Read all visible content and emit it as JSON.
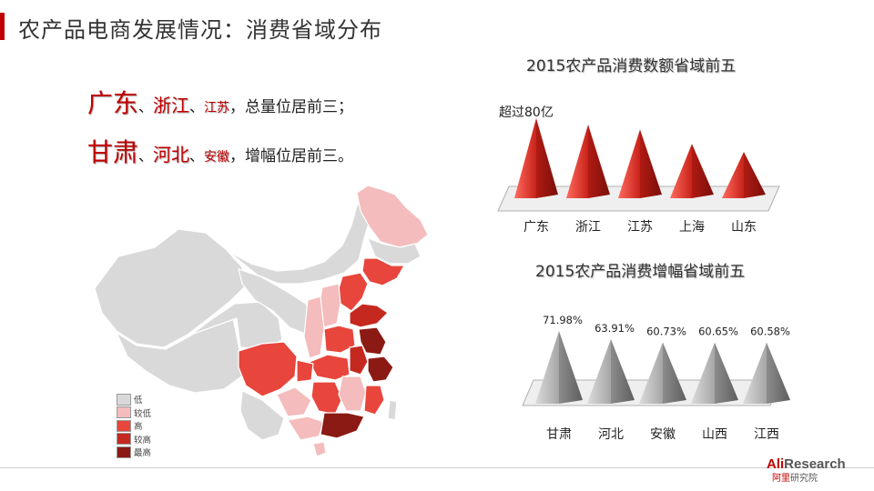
{
  "page": {
    "title": "农产品电商发展情况：消费省域分布"
  },
  "summary": {
    "line1": {
      "p1": "广东",
      "sep1": "、",
      "p2": "浙江",
      "sep2": "、",
      "p3": "江苏",
      "text": "，总量位居前三；"
    },
    "line2": {
      "p1": "甘肃",
      "sep1": "、",
      "p2": "河北",
      "sep2": "、",
      "p3": "安徽",
      "text": "，增幅位居前三。"
    }
  },
  "map_legend": {
    "items": [
      {
        "label": "低",
        "color": "#d9d9d9"
      },
      {
        "label": "较低",
        "color": "#f4bcbc"
      },
      {
        "label": "高",
        "color": "#e8453c"
      },
      {
        "label": "较高",
        "color": "#c4281f"
      },
      {
        "label": "最高",
        "color": "#8b1a14"
      }
    ]
  },
  "chart_data": [
    {
      "type": "bar",
      "title": "2015农产品消费数额省域前五",
      "categories": [
        "广东",
        "浙江",
        "江苏",
        "上海",
        "山东"
      ],
      "values": [
        100,
        92,
        86,
        68,
        58
      ],
      "annotation": "超过80亿",
      "color": "#d42a1f",
      "value_labels": []
    },
    {
      "type": "bar",
      "title": "2015农产品消费增幅省域前五",
      "categories": [
        "甘肃",
        "河北",
        "安徽",
        "山西",
        "江西"
      ],
      "values": [
        71.98,
        63.91,
        60.73,
        60.65,
        60.58
      ],
      "value_labels": [
        "71.98%",
        "63.91%",
        "60.73%",
        "60.65%",
        "60.58%"
      ],
      "color": "#9a9a9a"
    }
  ],
  "logo": {
    "main_red": "Ali",
    "main_gray": "Research",
    "sub_red": "阿里",
    "sub_gray": "研究院"
  }
}
